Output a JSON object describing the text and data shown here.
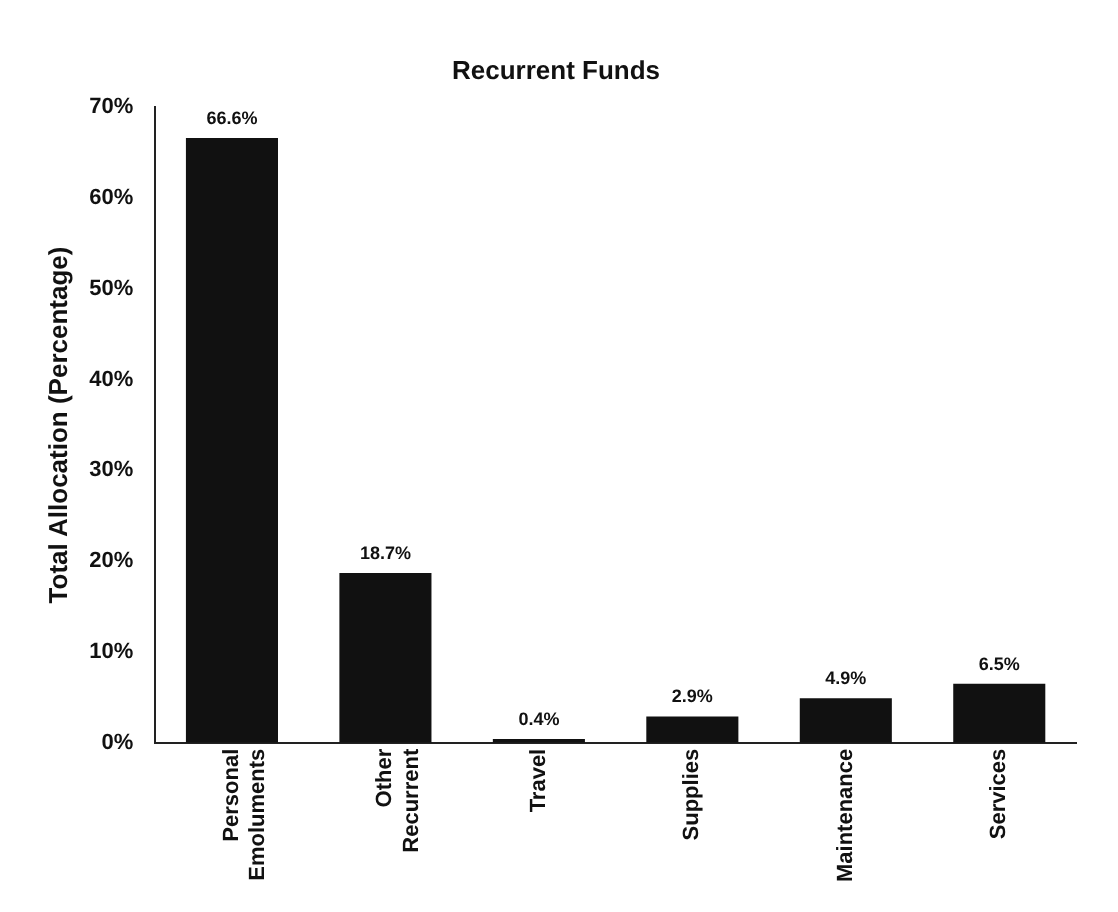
{
  "chart_data": {
    "type": "bar",
    "title": "Recurrent Funds",
    "ylabel": "Total Allocation (Percentage)",
    "categories": [
      "Personal Emoluments",
      "Other Recurrent",
      "Travel",
      "Supplies",
      "Maintenance",
      "Services"
    ],
    "values": [
      66.6,
      18.7,
      0.4,
      2.9,
      4.9,
      6.5
    ],
    "value_labels": [
      "66.6%",
      "18.7%",
      "0.4%",
      "2.9%",
      "4.9%",
      "6.5%"
    ],
    "color": "#111111",
    "ylim": [
      0,
      70
    ],
    "yticks": [
      {
        "value": 0,
        "label": "0%"
      },
      {
        "value": 10,
        "label": "10%"
      },
      {
        "value": 20,
        "label": "20%"
      },
      {
        "value": 30,
        "label": "30%"
      },
      {
        "value": 40,
        "label": "40%"
      },
      {
        "value": 50,
        "label": "50%"
      },
      {
        "value": 60,
        "label": "60%"
      },
      {
        "value": 70,
        "label": "70%"
      }
    ],
    "grid": false,
    "legend": false
  }
}
